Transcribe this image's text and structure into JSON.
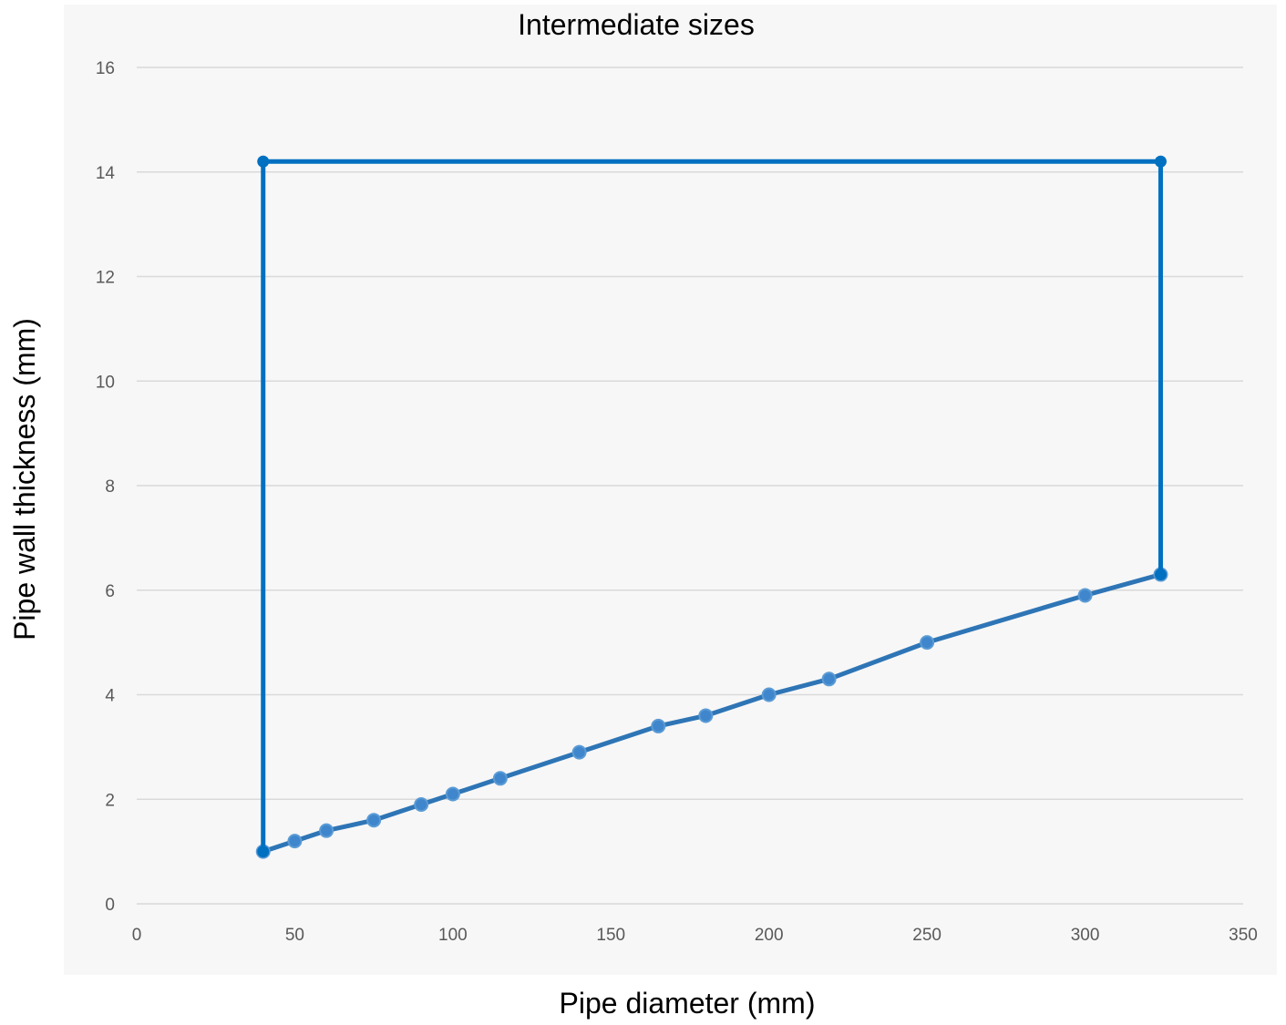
{
  "chart_data": {
    "type": "scatter",
    "title": "Intermediate sizes",
    "xlabel": "Pipe diameter (mm)",
    "ylabel": "Pipe wall thickness (mm)",
    "xlim": [
      0,
      350
    ],
    "ylim": [
      0,
      16
    ],
    "xticks": [
      0,
      50,
      100,
      150,
      200,
      250,
      300,
      350
    ],
    "yticks": [
      0,
      2,
      4,
      6,
      8,
      10,
      12,
      14,
      16
    ],
    "grid": "horizontal",
    "legend": "none",
    "series": [
      {
        "role": "envelope",
        "color": "#0070c0",
        "points": [
          {
            "x": 40,
            "y": 1.0
          },
          {
            "x": 40,
            "y": 14.2
          },
          {
            "x": 323.9,
            "y": 14.2
          },
          {
            "x": 323.9,
            "y": 6.3
          }
        ]
      },
      {
        "role": "intermediate",
        "color": "#2e75b6",
        "points": [
          {
            "x": 40,
            "y": 1.0
          },
          {
            "x": 50,
            "y": 1.2
          },
          {
            "x": 60,
            "y": 1.4
          },
          {
            "x": 75,
            "y": 1.6
          },
          {
            "x": 90,
            "y": 1.9
          },
          {
            "x": 100,
            "y": 2.1
          },
          {
            "x": 115,
            "y": 2.4
          },
          {
            "x": 140,
            "y": 2.9
          },
          {
            "x": 165,
            "y": 3.4
          },
          {
            "x": 180,
            "y": 3.6
          },
          {
            "x": 200,
            "y": 4.0
          },
          {
            "x": 219,
            "y": 4.3
          },
          {
            "x": 250,
            "y": 5.0
          },
          {
            "x": 300,
            "y": 5.9
          },
          {
            "x": 323.9,
            "y": 6.3
          }
        ]
      }
    ]
  }
}
